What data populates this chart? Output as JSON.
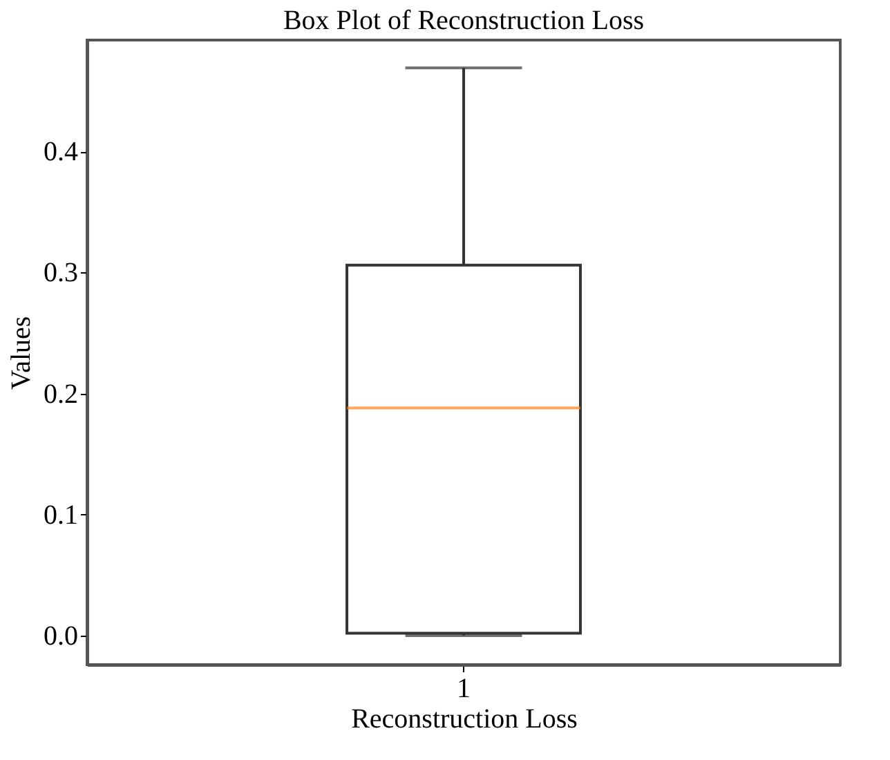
{
  "chart_data": {
    "type": "box",
    "title": "Box Plot of Reconstruction Loss",
    "xlabel": "Reconstruction Loss",
    "ylabel": "Values",
    "categories": [
      "1"
    ],
    "boxes": [
      {
        "low": 0.0,
        "q1": 0.002,
        "median": 0.188,
        "q3": 0.306,
        "high": 0.469
      }
    ],
    "ylim": [
      -0.024,
      0.492
    ],
    "yticks": [
      {
        "value": 0.0,
        "label": "0.0"
      },
      {
        "value": 0.1,
        "label": "0.1"
      },
      {
        "value": 0.2,
        "label": "0.2"
      },
      {
        "value": 0.3,
        "label": "0.3"
      },
      {
        "value": 0.4,
        "label": "0.4"
      }
    ],
    "grid": false
  }
}
